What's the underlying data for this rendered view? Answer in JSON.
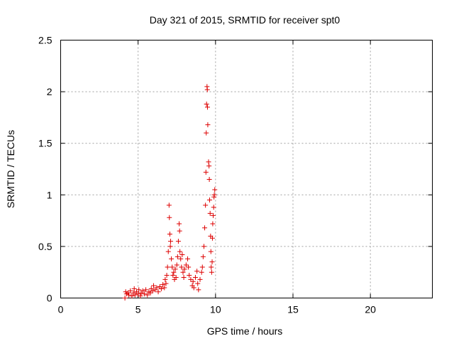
{
  "chart_data": {
    "type": "scatter",
    "title": "Day 321 of 2015, SRMTID for receiver spt0",
    "xlabel": "GPS time / hours",
    "ylabel": "SRMTID / TECUs",
    "xlim": [
      0,
      24
    ],
    "ylim": [
      0,
      2.5
    ],
    "xticks": [
      0,
      5,
      10,
      15,
      20
    ],
    "xtick_labels": [
      "0",
      "5",
      "10",
      "15",
      "20"
    ],
    "yticks": [
      0,
      0.5,
      1,
      1.5,
      2,
      2.5
    ],
    "ytick_labels": [
      "0",
      "0.5",
      "1",
      "1.5",
      "2",
      "2.5"
    ],
    "grid": true,
    "marker": "+",
    "color": "#dd0000",
    "series": [
      {
        "name": "spt0",
        "points": [
          [
            4.15,
            0.0
          ],
          [
            4.2,
            0.06
          ],
          [
            4.25,
            0.04
          ],
          [
            4.35,
            0.05
          ],
          [
            4.4,
            0.03
          ],
          [
            4.5,
            0.07
          ],
          [
            4.6,
            0.02
          ],
          [
            4.7,
            0.05
          ],
          [
            4.75,
            0.09
          ],
          [
            4.8,
            0.03
          ],
          [
            4.9,
            0.06
          ],
          [
            5.0,
            0.04
          ],
          [
            5.05,
            0.08
          ],
          [
            5.15,
            0.02
          ],
          [
            5.2,
            0.05
          ],
          [
            5.3,
            0.07
          ],
          [
            5.4,
            0.04
          ],
          [
            5.5,
            0.08
          ],
          [
            5.6,
            0.03
          ],
          [
            5.7,
            0.06
          ],
          [
            5.8,
            0.05
          ],
          [
            5.85,
            0.09
          ],
          [
            5.95,
            0.07
          ],
          [
            6.0,
            0.12
          ],
          [
            6.1,
            0.08
          ],
          [
            6.2,
            0.1
          ],
          [
            6.3,
            0.06
          ],
          [
            6.4,
            0.11
          ],
          [
            6.5,
            0.09
          ],
          [
            6.6,
            0.13
          ],
          [
            6.7,
            0.1
          ],
          [
            6.75,
            0.18
          ],
          [
            6.8,
            0.14
          ],
          [
            6.85,
            0.22
          ],
          [
            6.9,
            0.3
          ],
          [
            6.95,
            0.45
          ],
          [
            7.0,
            0.9
          ],
          [
            7.02,
            0.78
          ],
          [
            7.05,
            0.62
          ],
          [
            7.08,
            0.5
          ],
          [
            7.1,
            0.55
          ],
          [
            7.15,
            0.38
          ],
          [
            7.2,
            0.3
          ],
          [
            7.25,
            0.22
          ],
          [
            7.3,
            0.25
          ],
          [
            7.35,
            0.18
          ],
          [
            7.4,
            0.28
          ],
          [
            7.45,
            0.2
          ],
          [
            7.5,
            0.32
          ],
          [
            7.55,
            0.4
          ],
          [
            7.6,
            0.55
          ],
          [
            7.65,
            0.72
          ],
          [
            7.68,
            0.65
          ],
          [
            7.7,
            0.45
          ],
          [
            7.75,
            0.38
          ],
          [
            7.8,
            0.3
          ],
          [
            7.85,
            0.42
          ],
          [
            7.9,
            0.25
          ],
          [
            7.95,
            0.2
          ],
          [
            8.0,
            0.28
          ],
          [
            8.1,
            0.32
          ],
          [
            8.2,
            0.38
          ],
          [
            8.25,
            0.3
          ],
          [
            8.3,
            0.22
          ],
          [
            8.4,
            0.18
          ],
          [
            8.5,
            0.12
          ],
          [
            8.55,
            0.16
          ],
          [
            8.6,
            0.1
          ],
          [
            8.7,
            0.2
          ],
          [
            8.8,
            0.26
          ],
          [
            8.85,
            0.14
          ],
          [
            8.9,
            0.08
          ],
          [
            9.0,
            0.18
          ],
          [
            9.1,
            0.25
          ],
          [
            9.15,
            0.3
          ],
          [
            9.2,
            0.4
          ],
          [
            9.25,
            0.5
          ],
          [
            9.3,
            0.68
          ],
          [
            9.35,
            0.9
          ],
          [
            9.38,
            1.22
          ],
          [
            9.4,
            1.6
          ],
          [
            9.42,
            1.88
          ],
          [
            9.45,
            2.05
          ],
          [
            9.47,
            2.02
          ],
          [
            9.48,
            1.85
          ],
          [
            9.5,
            1.68
          ],
          [
            9.55,
            1.32
          ],
          [
            9.58,
            1.28
          ],
          [
            9.6,
            1.15
          ],
          [
            9.62,
            0.95
          ],
          [
            9.65,
            0.82
          ],
          [
            9.68,
            0.6
          ],
          [
            9.7,
            0.45
          ],
          [
            9.72,
            0.3
          ],
          [
            9.75,
            0.25
          ],
          [
            9.78,
            0.35
          ],
          [
            9.8,
            0.58
          ],
          [
            9.82,
            0.72
          ],
          [
            9.85,
            0.8
          ],
          [
            9.88,
            0.88
          ],
          [
            9.9,
            0.98
          ],
          [
            9.92,
            1.0
          ],
          [
            9.95,
            1.05
          ]
        ]
      }
    ]
  }
}
